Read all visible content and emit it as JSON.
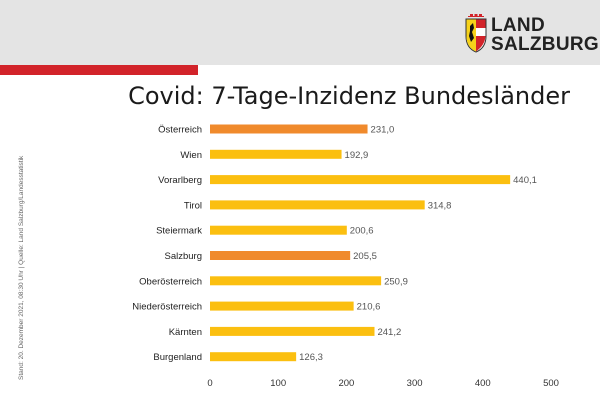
{
  "logo": {
    "line1": "LAND",
    "line2": "SALZBURG"
  },
  "source_note": "Stand: 20. Dezember 2021, 08:30 Uhr | Quelle: Land Salzburg/Landesstatistik",
  "colors": {
    "header_gray": "#e4e4e4",
    "accent_red": "#d2232a",
    "bar_yellow": "#fbbf10",
    "bar_orange": "#f08a2c"
  },
  "chart_data": {
    "type": "bar",
    "orientation": "horizontal",
    "title": "Covid: 7-Tage-Inzidenz Bundesländer",
    "xlabel": "",
    "ylabel": "",
    "xlim": [
      0,
      500
    ],
    "xticks": [
      "0",
      "100",
      "200",
      "300",
      "400",
      "500"
    ],
    "grid": false,
    "categories": [
      "Österreich",
      "Wien",
      "Vorarlberg",
      "Tirol",
      "Steiermark",
      "Salzburg",
      "Oberösterreich",
      "Niederösterreich",
      "Kärnten",
      "Burgenland"
    ],
    "values": [
      231.0,
      192.9,
      440.1,
      314.8,
      200.6,
      205.5,
      250.9,
      210.6,
      241.2,
      126.3
    ],
    "value_labels": [
      "231,0",
      "192,9",
      "440,1",
      "314,8",
      "200,6",
      "205,5",
      "250,9",
      "210,6",
      "241,2",
      "126,3"
    ],
    "highlighted": [
      "Österreich",
      "Salzburg"
    ]
  }
}
